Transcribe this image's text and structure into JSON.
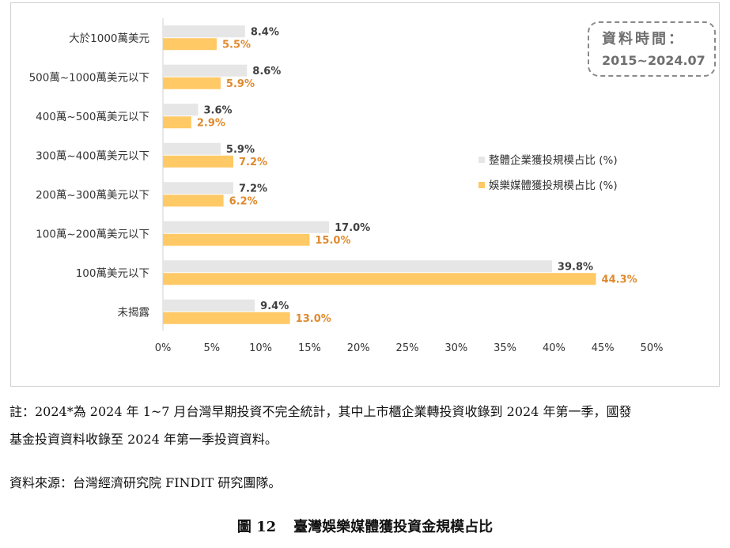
{
  "chart_data": {
    "type": "bar",
    "orientation": "horizontal",
    "categories": [
      "大於1000萬美元",
      "500萬~1000萬美元以下",
      "400萬~500萬美元以下",
      "300萬~400萬美元以下",
      "200萬~300萬美元以下",
      "100萬~200萬美元以下",
      "100萬美元以下",
      "未揭露"
    ],
    "series": [
      {
        "name": "整體企業獲投規模占比 (%)",
        "color": "#e6e6e6",
        "label_color": "#404040",
        "values": [
          8.4,
          8.6,
          3.6,
          5.9,
          7.2,
          17.0,
          39.8,
          9.4
        ],
        "labels": [
          "8.4%",
          "8.6%",
          "3.6%",
          "5.9%",
          "7.2%",
          "17.0%",
          "39.8%",
          "9.4%"
        ]
      },
      {
        "name": "娛樂媒體獲投規模占比 (%)",
        "color": "#ffc966",
        "label_color": "#e08a2e",
        "values": [
          5.5,
          5.9,
          2.9,
          7.2,
          6.2,
          15.0,
          44.3,
          13.0
        ],
        "labels": [
          "5.5%",
          "5.9%",
          "2.9%",
          "7.2%",
          "6.2%",
          "15.0%",
          "44.3%",
          "13.0%"
        ]
      }
    ],
    "x_ticks": [
      "0%",
      "5%",
      "10%",
      "15%",
      "20%",
      "25%",
      "30%",
      "35%",
      "40%",
      "45%",
      "50%"
    ],
    "xlim": [
      0,
      50
    ],
    "grid": false,
    "legend_position": "right"
  },
  "period_box": {
    "line1": "資料時間：",
    "line2": "2015~2024.07"
  },
  "notes": {
    "line1": "註：2024*為 2024 年 1~7 月台灣早期投資不完全統計，其中上市櫃企業轉投資收錄到 2024 年第一季，國發",
    "line2": "基金投資資料收錄至 2024 年第一季投資資料。",
    "source": "資料來源：台灣經濟研究院 FINDIT 研究團隊。"
  },
  "caption": {
    "number": "圖 12",
    "title": "臺灣娛樂媒體獲投資金規模占比"
  }
}
